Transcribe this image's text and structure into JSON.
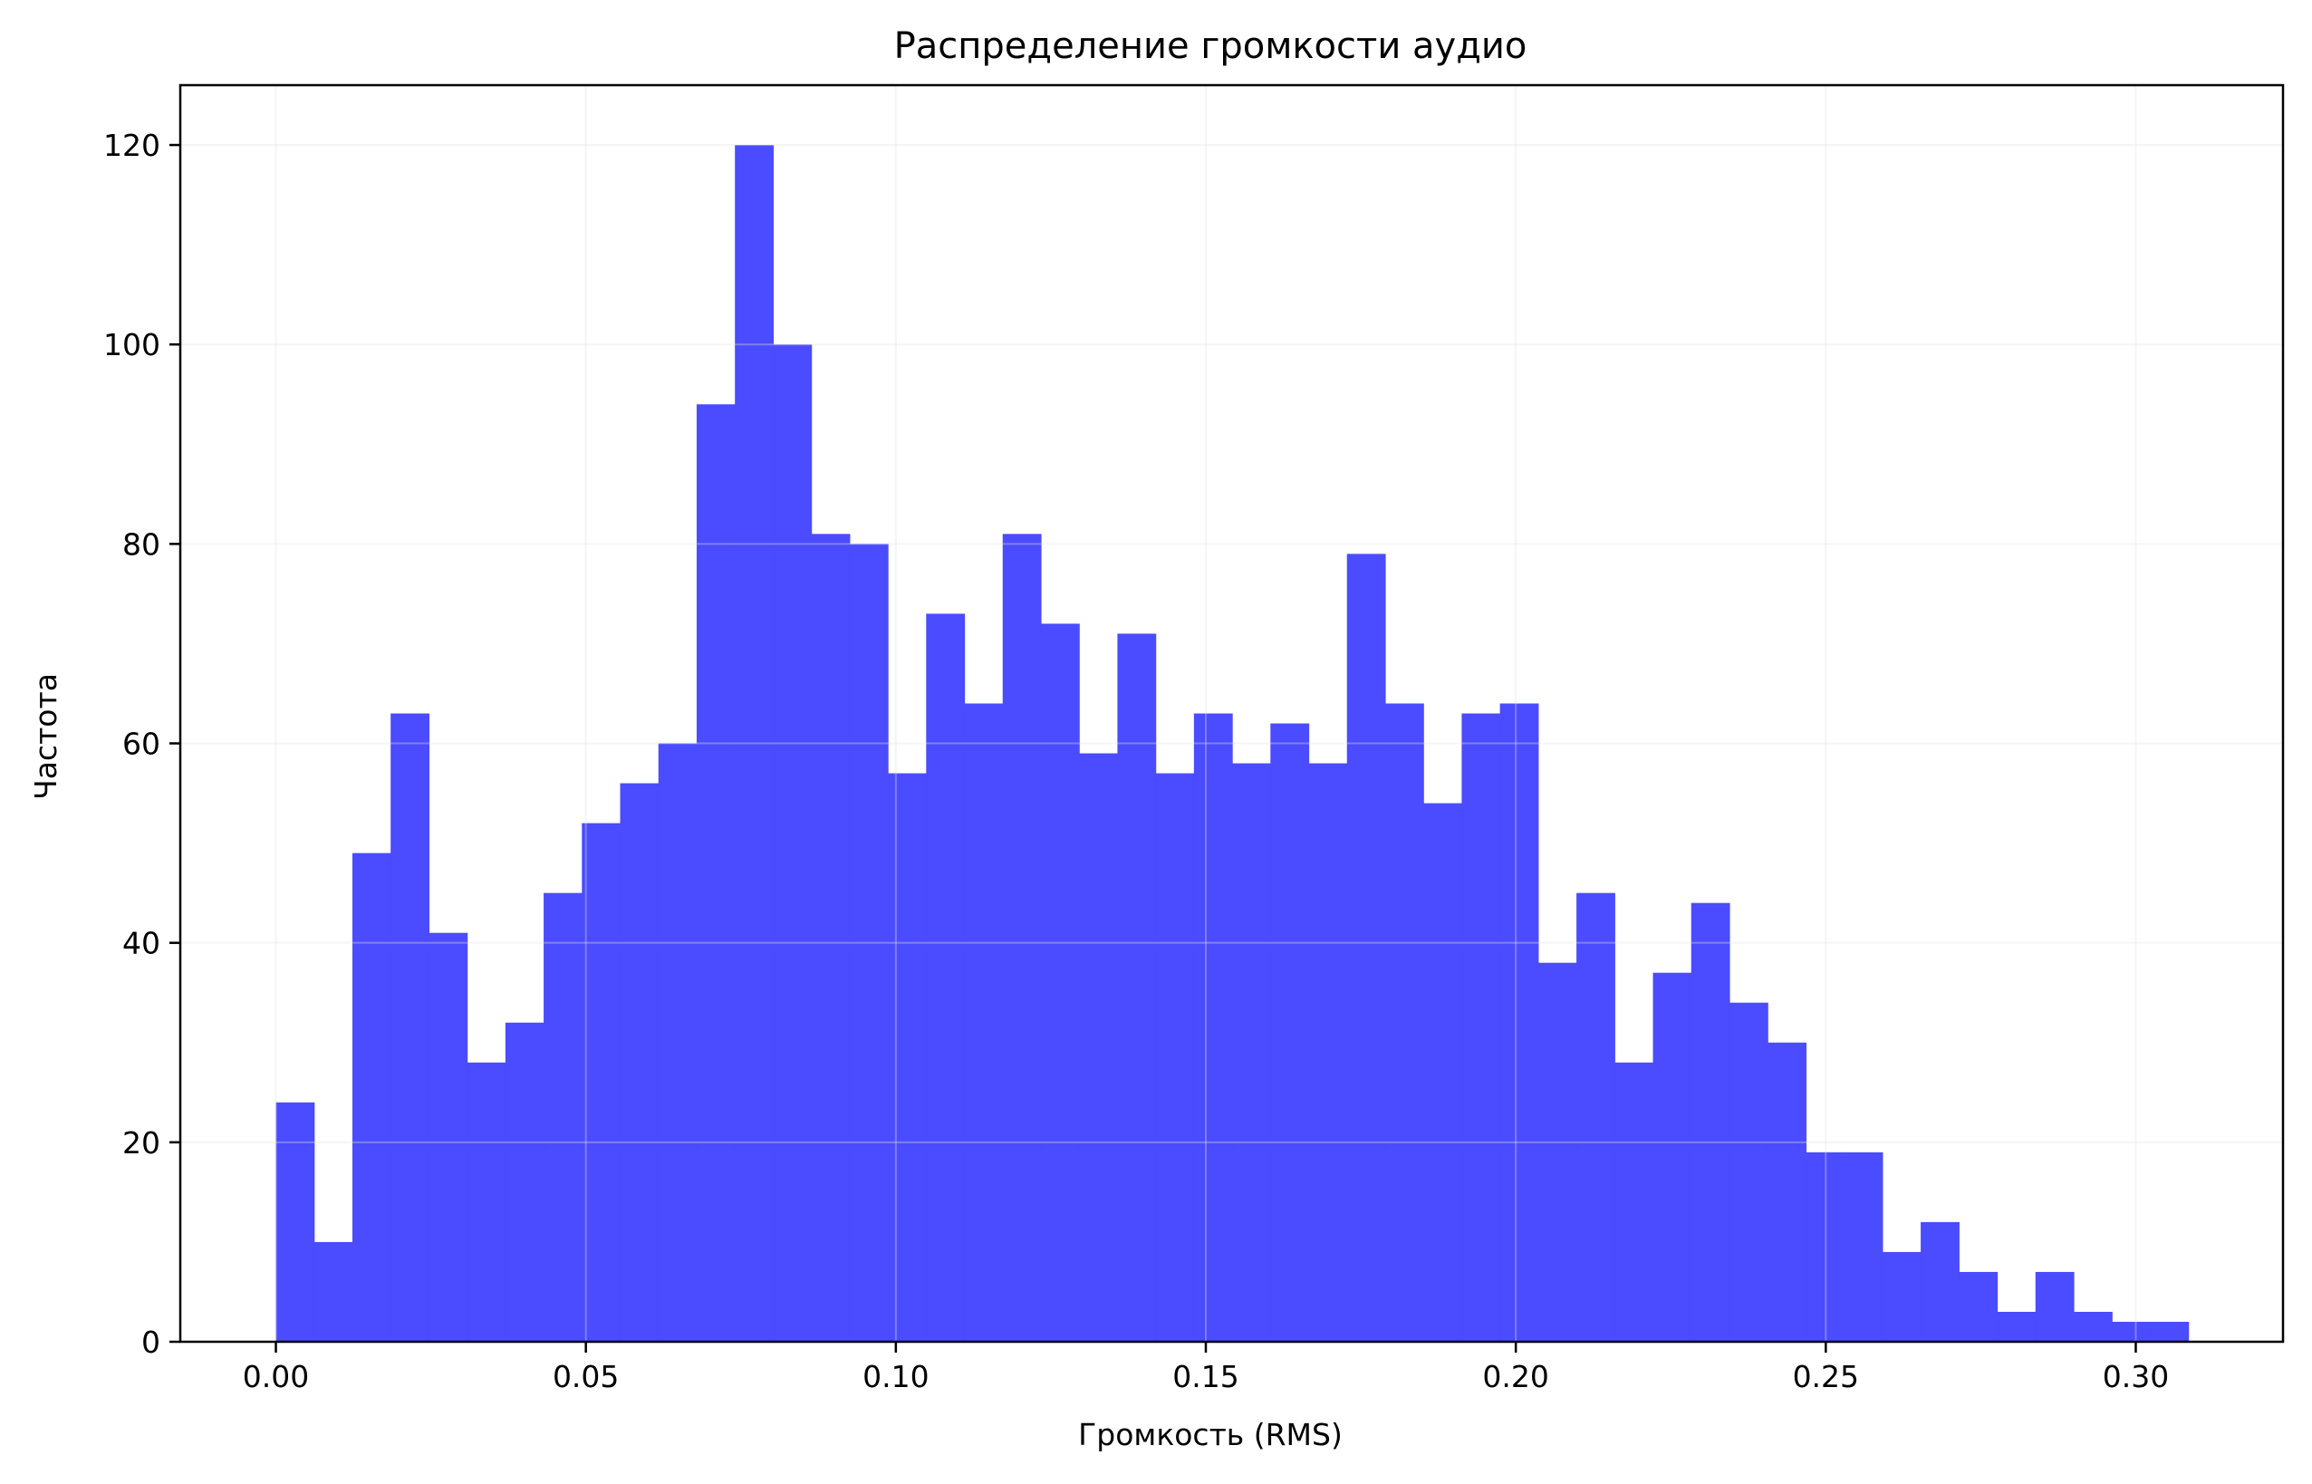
{
  "chart_data": {
    "type": "bar",
    "title": "Распределение громкости аудио",
    "xlabel": "Громкость (RMS)",
    "ylabel": "Частота",
    "bin_start": 0.0,
    "bin_width": 0.00617,
    "values": [
      24,
      10,
      49,
      63,
      41,
      28,
      32,
      45,
      52,
      56,
      60,
      94,
      120,
      100,
      81,
      80,
      57,
      73,
      64,
      81,
      72,
      59,
      71,
      57,
      63,
      58,
      62,
      58,
      79,
      64,
      54,
      63,
      64,
      38,
      45,
      28,
      37,
      44,
      34,
      30,
      19,
      19,
      9,
      12,
      7,
      3,
      7,
      3,
      2,
      2
    ],
    "xlim": [
      -0.01542,
      0.32375
    ],
    "ylim": [
      0,
      126
    ],
    "xticks": [
      0.0,
      0.05,
      0.1,
      0.15,
      0.2,
      0.25,
      0.3
    ],
    "xtick_labels": [
      "0.00",
      "0.05",
      "0.10",
      "0.15",
      "0.20",
      "0.25",
      "0.30"
    ],
    "yticks": [
      0,
      20,
      40,
      60,
      80,
      100,
      120
    ],
    "ytick_labels": [
      "0",
      "20",
      "40",
      "60",
      "80",
      "100",
      "120"
    ],
    "grid": true,
    "bar_color": "#4b4bff",
    "grid_color": "#e3e3e3"
  }
}
